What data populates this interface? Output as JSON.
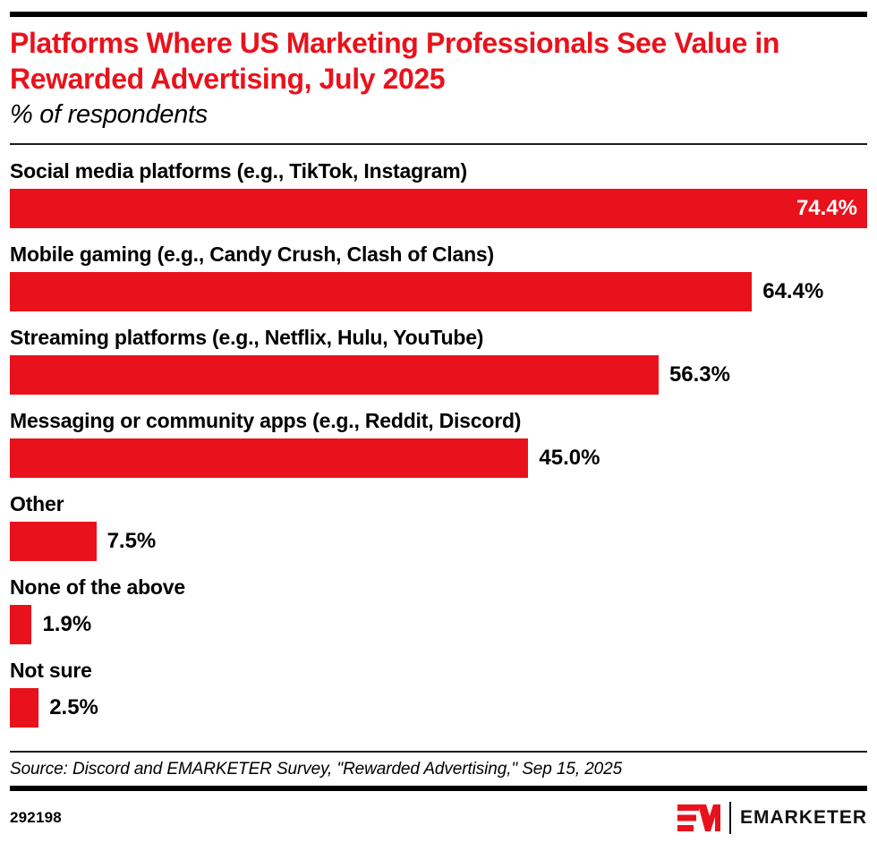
{
  "header": {
    "title": "Platforms Where US Marketing Professionals See Value in Rewarded Advertising, July 2025",
    "subtitle": "% of respondents"
  },
  "chart_data": {
    "type": "bar",
    "orientation": "horizontal",
    "title": "Platforms Where US Marketing Professionals See Value in Rewarded Advertising, July 2025",
    "subtitle": "% of respondents",
    "categories": [
      "Social media platforms (e.g., TikTok, Instagram)",
      "Mobile gaming (e.g., Candy Crush, Clash of Clans)",
      "Streaming platforms (e.g., Netflix, Hulu, YouTube)",
      "Messaging or community apps (e.g., Reddit, Discord)",
      "Other",
      "None of the above",
      "Not sure"
    ],
    "values": [
      74.4,
      64.4,
      56.3,
      45.0,
      7.5,
      1.9,
      2.5
    ],
    "value_labels": [
      "74.4%",
      "64.4%",
      "56.3%",
      "45.0%",
      "7.5%",
      "1.9%",
      "2.5%"
    ],
    "scale_max": 74.4,
    "xlim": [
      0,
      74.4
    ],
    "bar_color": "#E9121C",
    "grid": false,
    "legend": false,
    "value_label_position": "first bar inside white, others outside black"
  },
  "footer": {
    "source": "Source: Discord and EMARKETER Survey, \"Rewarded Advertising,\" Sep 15, 2025",
    "chart_id": "292198",
    "brand_name": "EMARKETER"
  },
  "colors": {
    "accent_red": "#E9121C",
    "text": "#000000",
    "inside_value_text": "#FFFFFF",
    "rule": "#000000"
  }
}
